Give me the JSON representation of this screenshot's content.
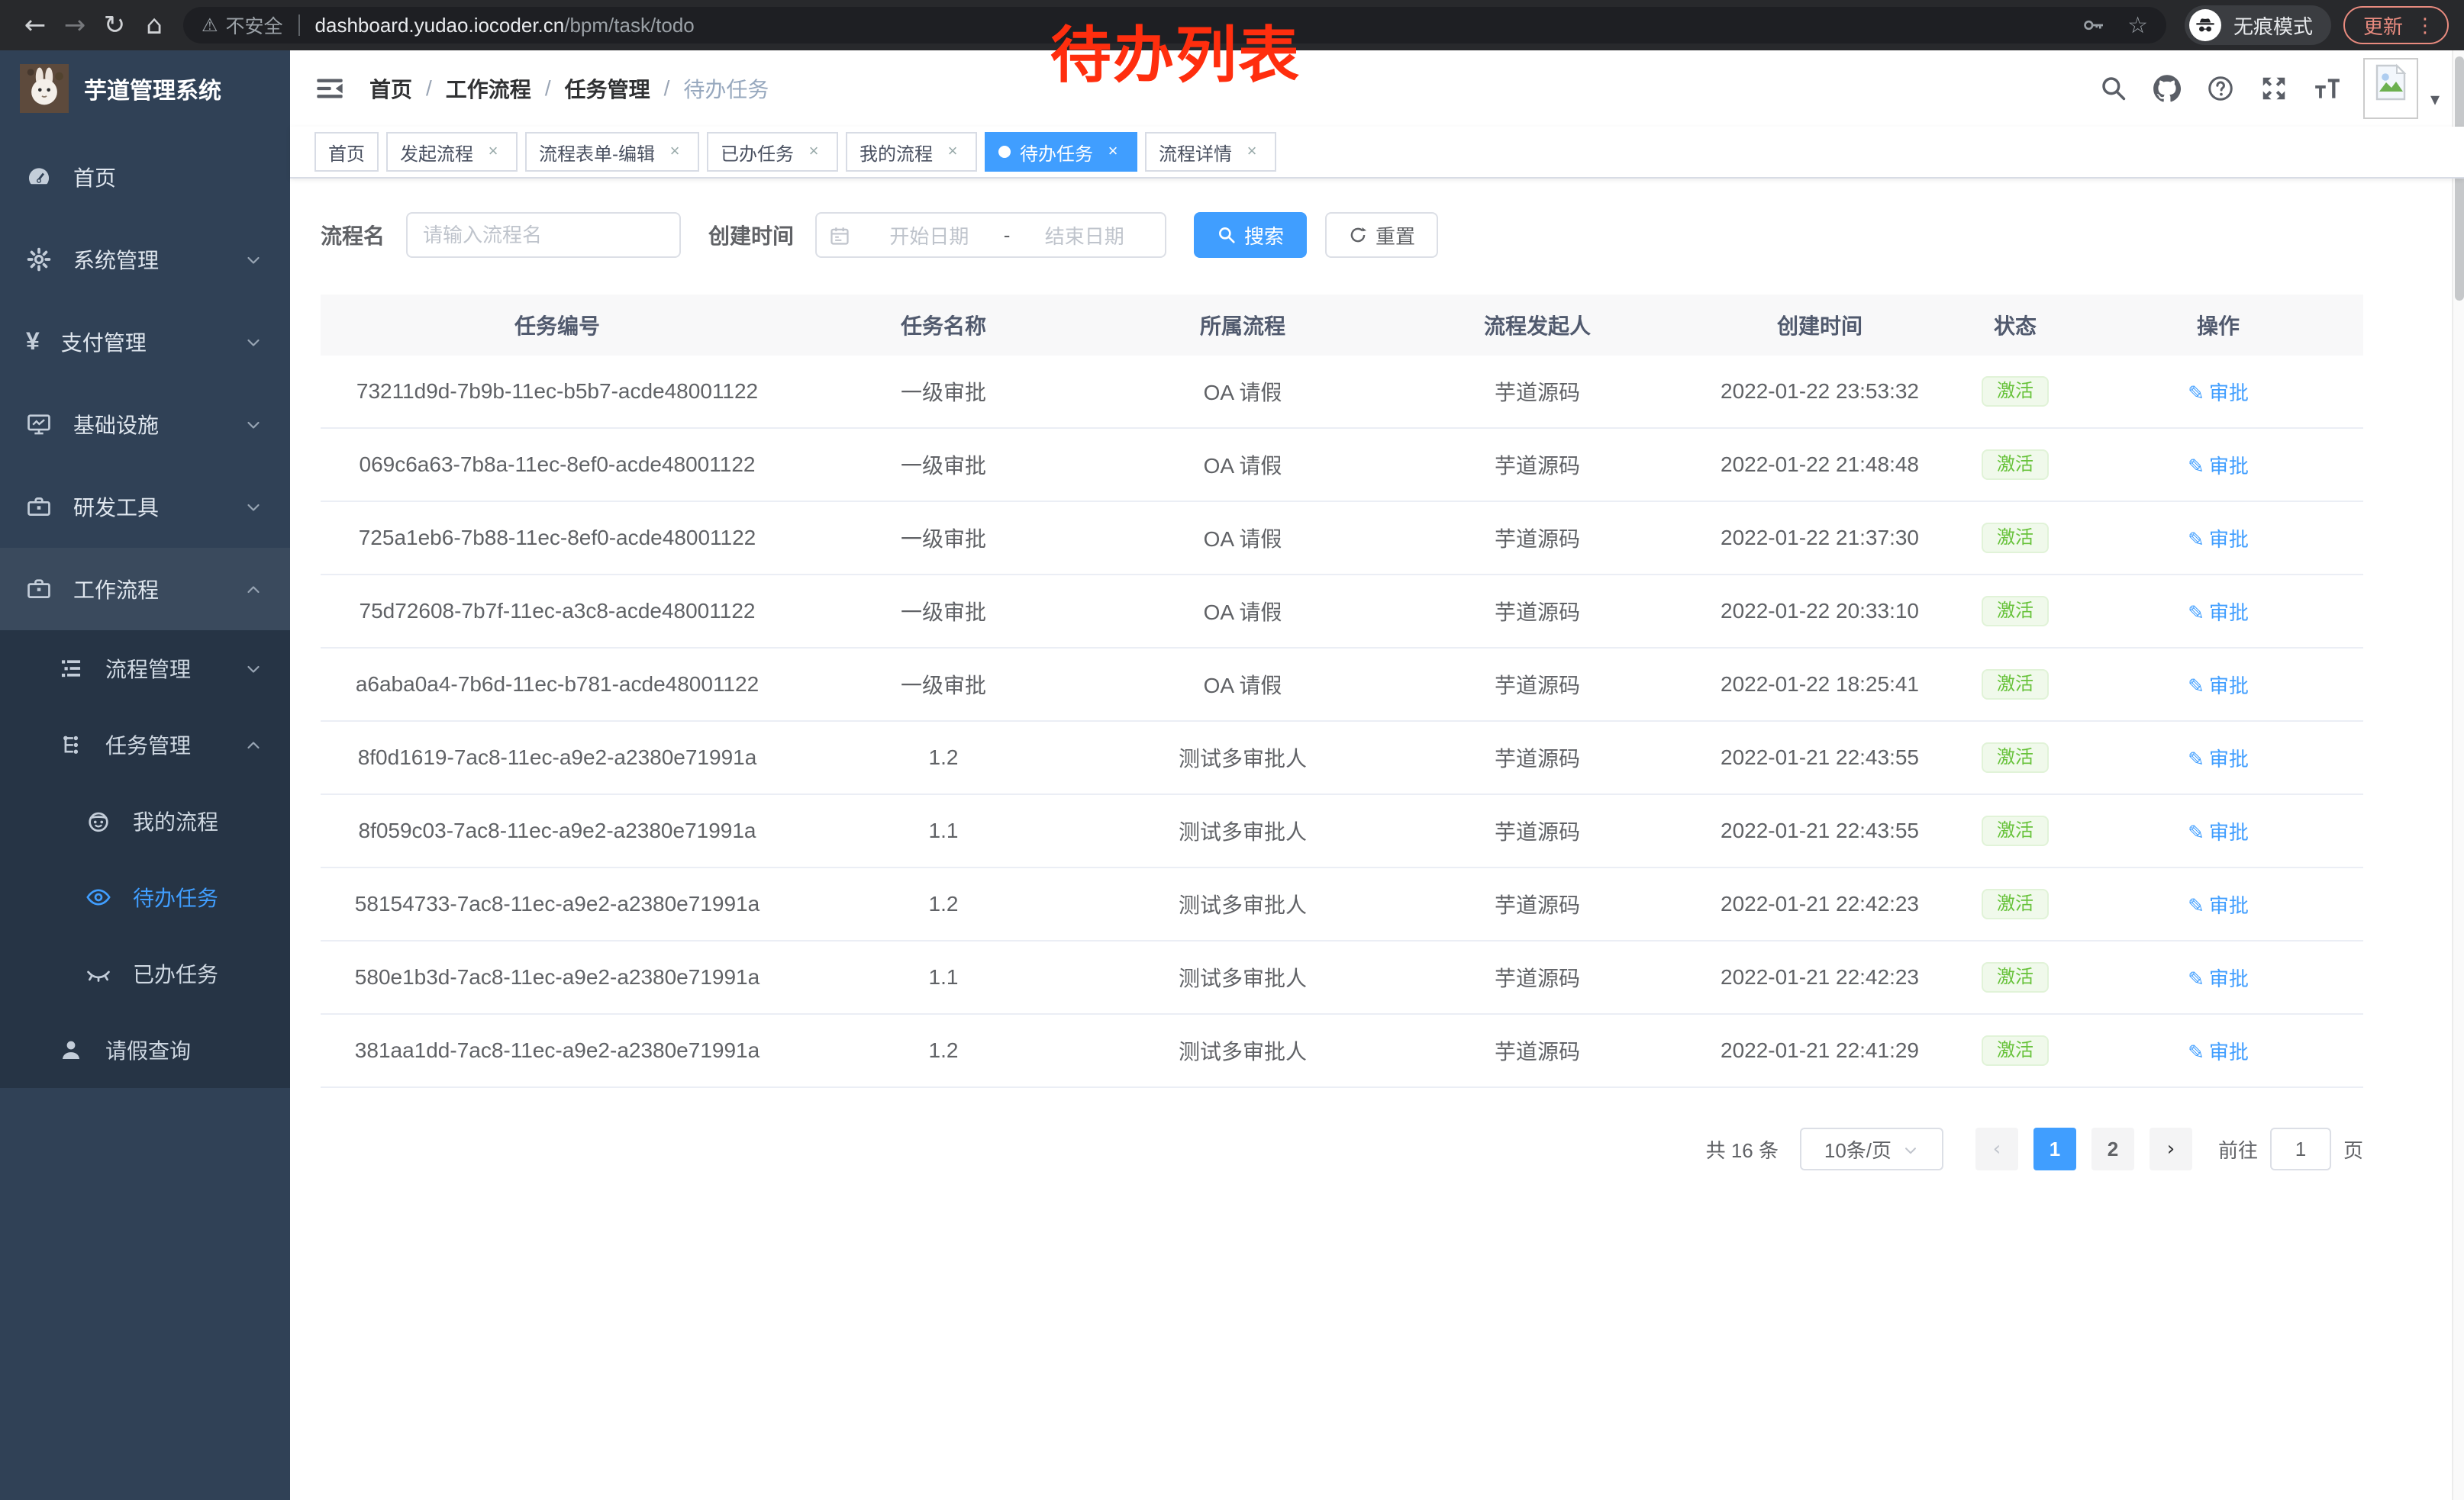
{
  "browser": {
    "security_label": "不安全",
    "url_host": "dashboard.yudao.iocoder.cn",
    "url_path": "/bpm/task/todo",
    "incognito_label": "无痕模式",
    "update_label": "更新",
    "menu_dots": "⋮"
  },
  "annotation": {
    "text": "待办列表",
    "color": "#ff2e0e"
  },
  "sidebar": {
    "title": "芋道管理系统",
    "items": [
      {
        "label": "首页",
        "icon": "dashboard-icon",
        "level": 0,
        "arrow": "",
        "sub": false,
        "hl": false,
        "active": false
      },
      {
        "label": "系统管理",
        "icon": "gear-icon",
        "level": 0,
        "arrow": "down",
        "sub": false,
        "hl": false,
        "active": false
      },
      {
        "label": "支付管理",
        "icon": "yen-icon",
        "level": 0,
        "arrow": "down",
        "sub": false,
        "hl": false,
        "active": false
      },
      {
        "label": "基础设施",
        "icon": "monitor-icon",
        "level": 0,
        "arrow": "down",
        "sub": false,
        "hl": false,
        "active": false
      },
      {
        "label": "研发工具",
        "icon": "toolbox-icon",
        "level": 0,
        "arrow": "down",
        "sub": false,
        "hl": false,
        "active": false
      },
      {
        "label": "工作流程",
        "icon": "briefcase-icon",
        "level": 0,
        "arrow": "up",
        "sub": false,
        "hl": true,
        "active": false
      },
      {
        "label": "流程管理",
        "icon": "list-icon",
        "level": 1,
        "arrow": "down",
        "sub": true,
        "hl": false,
        "active": false
      },
      {
        "label": "任务管理",
        "icon": "tree-icon",
        "level": 1,
        "arrow": "up",
        "sub": true,
        "hl": false,
        "active": false
      },
      {
        "label": "我的流程",
        "icon": "face-icon",
        "level": 2,
        "arrow": "",
        "sub": true,
        "hl": false,
        "active": false
      },
      {
        "label": "待办任务",
        "icon": "eye-icon",
        "level": 2,
        "arrow": "",
        "sub": true,
        "hl": false,
        "active": true
      },
      {
        "label": "已办任务",
        "icon": "eye-closed-icon",
        "level": 2,
        "arrow": "",
        "sub": true,
        "hl": false,
        "active": false
      },
      {
        "label": "请假查询",
        "icon": "user-icon",
        "level": 1,
        "arrow": "",
        "sub": true,
        "hl": false,
        "active": false
      }
    ]
  },
  "breadcrumb": {
    "items": [
      "首页",
      "工作流程",
      "任务管理",
      "待办任务"
    ],
    "separator": "/"
  },
  "tabs": [
    {
      "label": "首页",
      "closable": false,
      "active": false
    },
    {
      "label": "发起流程",
      "closable": true,
      "active": false
    },
    {
      "label": "流程表单-编辑",
      "closable": true,
      "active": false
    },
    {
      "label": "已办任务",
      "closable": true,
      "active": false
    },
    {
      "label": "我的流程",
      "closable": true,
      "active": false
    },
    {
      "label": "待办任务",
      "closable": true,
      "active": true
    },
    {
      "label": "流程详情",
      "closable": true,
      "active": false
    }
  ],
  "filters": {
    "process_name_label": "流程名",
    "process_name_placeholder": "请输入流程名",
    "create_time_label": "创建时间",
    "start_placeholder": "开始日期",
    "range_separator": "-",
    "end_placeholder": "结束日期",
    "search_label": "搜索",
    "reset_label": "重置"
  },
  "table": {
    "columns": [
      "任务编号",
      "任务名称",
      "所属流程",
      "流程发起人",
      "创建时间",
      "状态",
      "操作"
    ],
    "rows": [
      {
        "id": "73211d9d-7b9b-11ec-b5b7-acde48001122",
        "name": "一级审批",
        "process": "OA 请假",
        "initiator": "芋道源码",
        "created": "2022-01-22 23:53:32",
        "status": "激活",
        "action": "审批"
      },
      {
        "id": "069c6a63-7b8a-11ec-8ef0-acde48001122",
        "name": "一级审批",
        "process": "OA 请假",
        "initiator": "芋道源码",
        "created": "2022-01-22 21:48:48",
        "status": "激活",
        "action": "审批"
      },
      {
        "id": "725a1eb6-7b88-11ec-8ef0-acde48001122",
        "name": "一级审批",
        "process": "OA 请假",
        "initiator": "芋道源码",
        "created": "2022-01-22 21:37:30",
        "status": "激活",
        "action": "审批"
      },
      {
        "id": "75d72608-7b7f-11ec-a3c8-acde48001122",
        "name": "一级审批",
        "process": "OA 请假",
        "initiator": "芋道源码",
        "created": "2022-01-22 20:33:10",
        "status": "激活",
        "action": "审批"
      },
      {
        "id": "a6aba0a4-7b6d-11ec-b781-acde48001122",
        "name": "一级审批",
        "process": "OA 请假",
        "initiator": "芋道源码",
        "created": "2022-01-22 18:25:41",
        "status": "激活",
        "action": "审批"
      },
      {
        "id": "8f0d1619-7ac8-11ec-a9e2-a2380e71991a",
        "name": "1.2",
        "process": "测试多审批人",
        "initiator": "芋道源码",
        "created": "2022-01-21 22:43:55",
        "status": "激活",
        "action": "审批"
      },
      {
        "id": "8f059c03-7ac8-11ec-a9e2-a2380e71991a",
        "name": "1.1",
        "process": "测试多审批人",
        "initiator": "芋道源码",
        "created": "2022-01-21 22:43:55",
        "status": "激活",
        "action": "审批"
      },
      {
        "id": "58154733-7ac8-11ec-a9e2-a2380e71991a",
        "name": "1.2",
        "process": "测试多审批人",
        "initiator": "芋道源码",
        "created": "2022-01-21 22:42:23",
        "status": "激活",
        "action": "审批"
      },
      {
        "id": "580e1b3d-7ac8-11ec-a9e2-a2380e71991a",
        "name": "1.1",
        "process": "测试多审批人",
        "initiator": "芋道源码",
        "created": "2022-01-21 22:42:23",
        "status": "激活",
        "action": "审批"
      },
      {
        "id": "381aa1dd-7ac8-11ec-a9e2-a2380e71991a",
        "name": "1.2",
        "process": "测试多审批人",
        "initiator": "芋道源码",
        "created": "2022-01-21 22:41:29",
        "status": "激活",
        "action": "审批"
      }
    ]
  },
  "pagination": {
    "total_label": "共 16 条",
    "page_size_label": "10条/页",
    "pages": [
      "1",
      "2"
    ],
    "active_page": "1",
    "prev_glyph": "‹",
    "next_glyph": "›",
    "goto_label": "前往",
    "goto_value": "1",
    "unit_label": "页"
  },
  "icons": {
    "back-icon": "←",
    "forward-icon": "→",
    "reload-icon": "↻",
    "home-icon": "⌂",
    "warning-icon": "⚠",
    "key-icon": "svg",
    "star-icon": "☆",
    "incognito-icon": "svg",
    "search-icon": "svg",
    "github-icon": "svg",
    "help-icon": "svg",
    "fullscreen-icon": "svg",
    "fontsize-icon": "svg",
    "caret-down-icon": "▾",
    "hamburger-icon": "svg",
    "dashboard-icon": "svg",
    "gear-icon": "svg",
    "yen-icon": "¥",
    "monitor-icon": "svg",
    "toolbox-icon": "svg",
    "briefcase-icon": "svg",
    "list-icon": "svg",
    "tree-icon": "svg",
    "face-icon": "svg",
    "eye-icon": "svg",
    "eye-closed-icon": "svg",
    "user-icon": "svg",
    "calendar-icon": "svg",
    "refresh-icon": "svg",
    "edit-icon": "✎",
    "avatar-placeholder-icon": "svg",
    "rabbit-logo": "svg",
    "chevron-down-icon": "svg",
    "chevron-up-icon": "svg"
  }
}
